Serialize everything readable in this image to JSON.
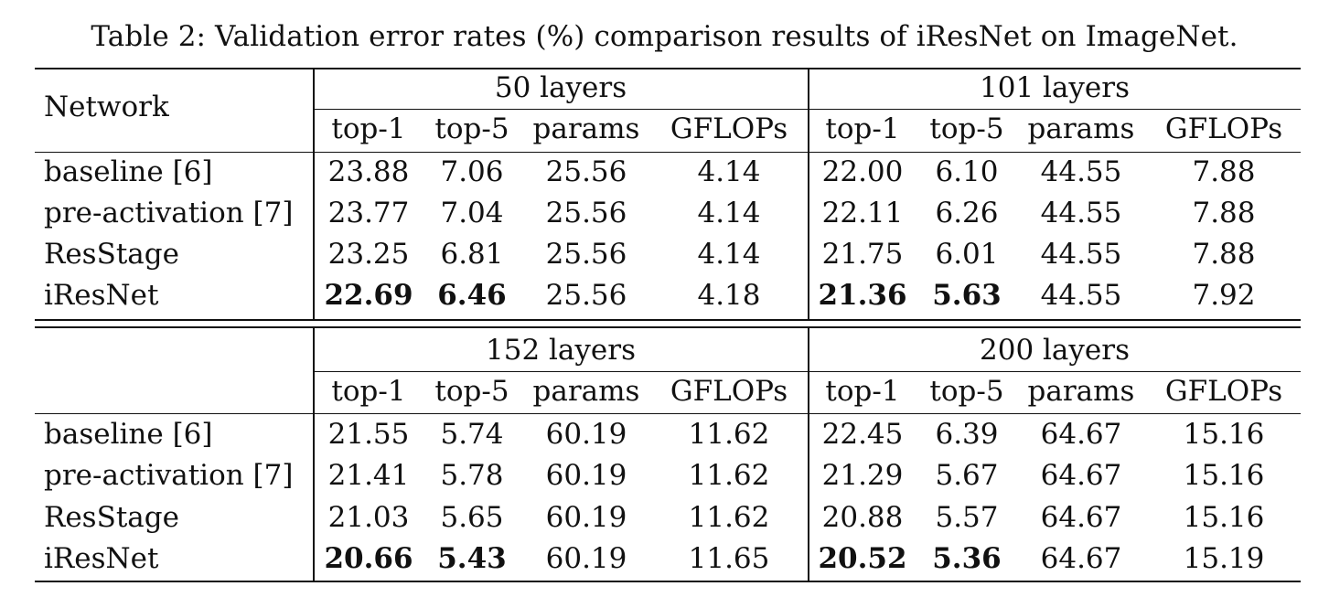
{
  "caption": "Table 2: Validation error rates (%) comparison results of iResNet on ImageNet.",
  "network_header": "Network",
  "column_headers": [
    "top-1",
    "top-5",
    "params",
    "GFLOPs"
  ],
  "blocks": [
    {
      "groups": [
        "50 layers",
        "101 layers"
      ],
      "rows": [
        {
          "name": "baseline [6]",
          "left": [
            "23.88",
            "7.06",
            "25.56",
            "4.14"
          ],
          "right": [
            "22.00",
            "6.10",
            "44.55",
            "7.88"
          ]
        },
        {
          "name": "pre-activation [7]",
          "left": [
            "23.77",
            "7.04",
            "25.56",
            "4.14"
          ],
          "right": [
            "22.11",
            "6.26",
            "44.55",
            "7.88"
          ]
        },
        {
          "name": "ResStage",
          "left": [
            "23.25",
            "6.81",
            "25.56",
            "4.14"
          ],
          "right": [
            "21.75",
            "6.01",
            "44.55",
            "7.88"
          ]
        },
        {
          "name": "iResNet",
          "bold": true,
          "left": [
            "22.69",
            "6.46",
            "25.56",
            "4.18"
          ],
          "right": [
            "21.36",
            "5.63",
            "44.55",
            "7.92"
          ]
        }
      ]
    },
    {
      "groups": [
        "152 layers",
        "200 layers"
      ],
      "rows": [
        {
          "name": "baseline [6]",
          "left": [
            "21.55",
            "5.74",
            "60.19",
            "11.62"
          ],
          "right": [
            "22.45",
            "6.39",
            "64.67",
            "15.16"
          ]
        },
        {
          "name": "pre-activation [7]",
          "left": [
            "21.41",
            "5.78",
            "60.19",
            "11.62"
          ],
          "right": [
            "21.29",
            "5.67",
            "64.67",
            "15.16"
          ]
        },
        {
          "name": "ResStage",
          "left": [
            "21.03",
            "5.65",
            "60.19",
            "11.62"
          ],
          "right": [
            "20.88",
            "5.57",
            "64.67",
            "15.16"
          ]
        },
        {
          "name": "iResNet",
          "bold": true,
          "left": [
            "20.66",
            "5.43",
            "60.19",
            "11.65"
          ],
          "right": [
            "20.52",
            "5.36",
            "64.67",
            "15.19"
          ]
        }
      ]
    }
  ]
}
